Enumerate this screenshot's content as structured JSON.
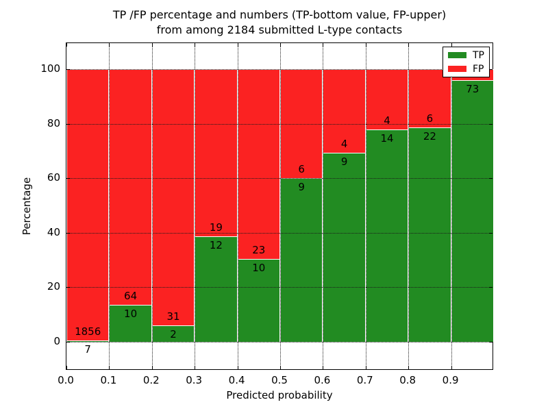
{
  "title": {
    "line1": "TP /FP percentage and numbers (TP-bottom value, FP-upper)",
    "line2": "from among 2184 submitted L-type contacts"
  },
  "axes": {
    "xlabel": "Predicted probability",
    "ylabel": "Percentage",
    "x_tick_labels": [
      "0.0",
      "0.1",
      "0.2",
      "0.3",
      "0.4",
      "0.5",
      "0.6",
      "0.7",
      "0.8",
      "0.9"
    ],
    "y_tick_labels": [
      "0",
      "20",
      "40",
      "60",
      "80",
      "100"
    ],
    "y_tick_values": [
      0,
      20,
      40,
      60,
      80,
      100
    ]
  },
  "legend": {
    "items": [
      {
        "label": "TP",
        "color": "#228B22"
      },
      {
        "label": "FP",
        "color": "#FB2222"
      }
    ]
  },
  "colors": {
    "tp_green": "#228B22",
    "fp_red": "#FB2222",
    "grid": "#1a1a1a",
    "background": "#ffffff"
  },
  "chart_data": {
    "type": "bar",
    "stacked": true,
    "normalized_to_percent": true,
    "title": "TP /FP percentage and numbers (TP-bottom value, FP-upper) from among 2184 submitted L-type contacts",
    "xlabel": "Predicted probability",
    "ylabel": "Percentage",
    "total_submitted_contacts": 2184,
    "bin_edges": [
      0.0,
      0.1,
      0.2,
      0.3,
      0.4,
      0.5,
      0.6,
      0.7,
      0.8,
      0.9,
      1.0
    ],
    "series": [
      {
        "name": "TP",
        "color": "#228B22",
        "counts": [
          7,
          10,
          2,
          12,
          10,
          9,
          9,
          14,
          22,
          73
        ],
        "percent": [
          0.38,
          13.51,
          6.06,
          38.71,
          30.3,
          60.0,
          69.23,
          77.78,
          78.57,
          96.05
        ]
      },
      {
        "name": "FP",
        "color": "#FB2222",
        "counts": [
          1856,
          64,
          31,
          19,
          23,
          6,
          4,
          4,
          6,
          null
        ],
        "percent": [
          99.62,
          86.49,
          93.94,
          61.29,
          69.7,
          40.0,
          30.77,
          22.22,
          21.43,
          3.95
        ]
      }
    ],
    "xlim": [
      0.0,
      1.0
    ],
    "ylim_data": [
      0,
      100
    ],
    "grid": "dotted both axes",
    "legend_position": "upper right",
    "label_rule": "TP count printed just below segment boundary, FP count just above it; last FP count hidden behind legend"
  }
}
